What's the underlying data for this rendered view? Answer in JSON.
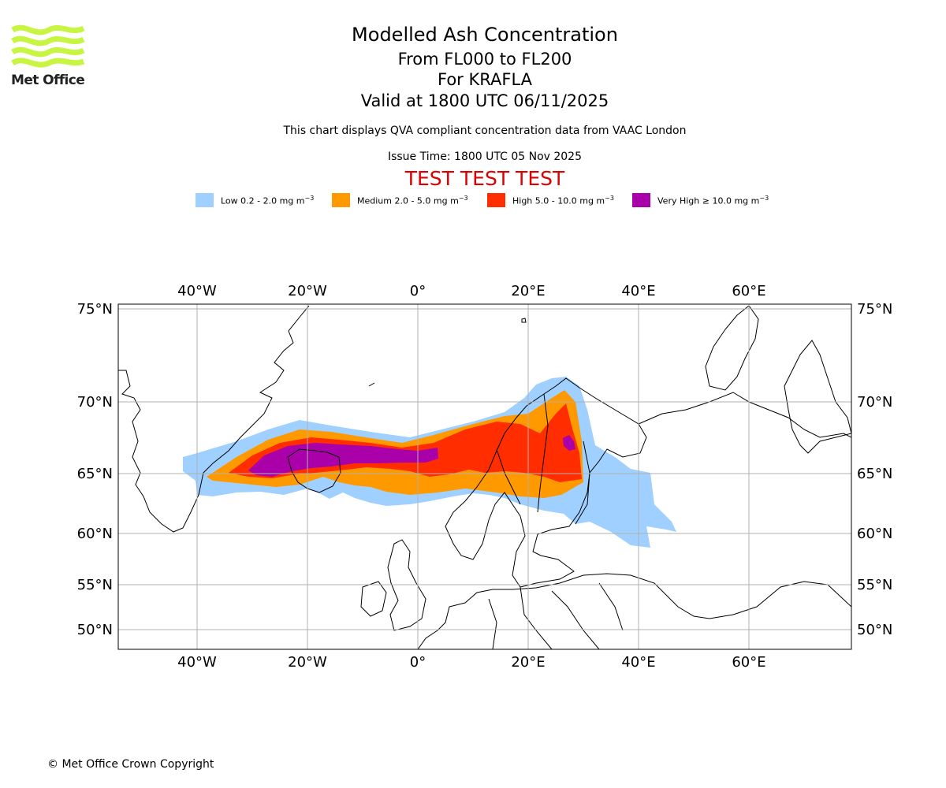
{
  "logo": {
    "text": "Met Office",
    "color": "#c8f542"
  },
  "header": {
    "title": "Modelled Ash Concentration",
    "levels": "From FL000 to FL200",
    "volcano": "For KRAFLA",
    "valid": "Valid at 1800 UTC 06/11/2025",
    "description": "This chart displays QVA compliant concentration data from VAAC London",
    "issue": "Issue Time: 1800 UTC 05 Nov 2025",
    "test_banner": "TEST TEST TEST"
  },
  "legend": {
    "items": [
      {
        "label_prefix": "Low 0.2 - 2.0 mg m",
        "color": "#a0d0ff"
      },
      {
        "label_prefix": "Medium 2.0 - 5.0 mg m",
        "color": "#ff9900"
      },
      {
        "label_prefix": "High 5.0 - 10.0 mg m",
        "color": "#ff2d00"
      },
      {
        "label_prefix": "Very High ≥ 10.0 mg m",
        "color": "#aa00aa"
      }
    ],
    "exponent": "−3"
  },
  "map": {
    "longitude_ticks": [
      "40°W",
      "20°W",
      "0°",
      "20°E",
      "40°E",
      "60°E"
    ],
    "latitude_ticks": [
      "75°N",
      "70°N",
      "65°N",
      "60°N",
      "55°N",
      "50°N"
    ],
    "lon_values": [
      -40,
      -20,
      0,
      20,
      40,
      60
    ],
    "lat_values": [
      75,
      70,
      65,
      60,
      55,
      50
    ]
  },
  "footer": {
    "copyright": "© Met Office Crown Copyright"
  }
}
